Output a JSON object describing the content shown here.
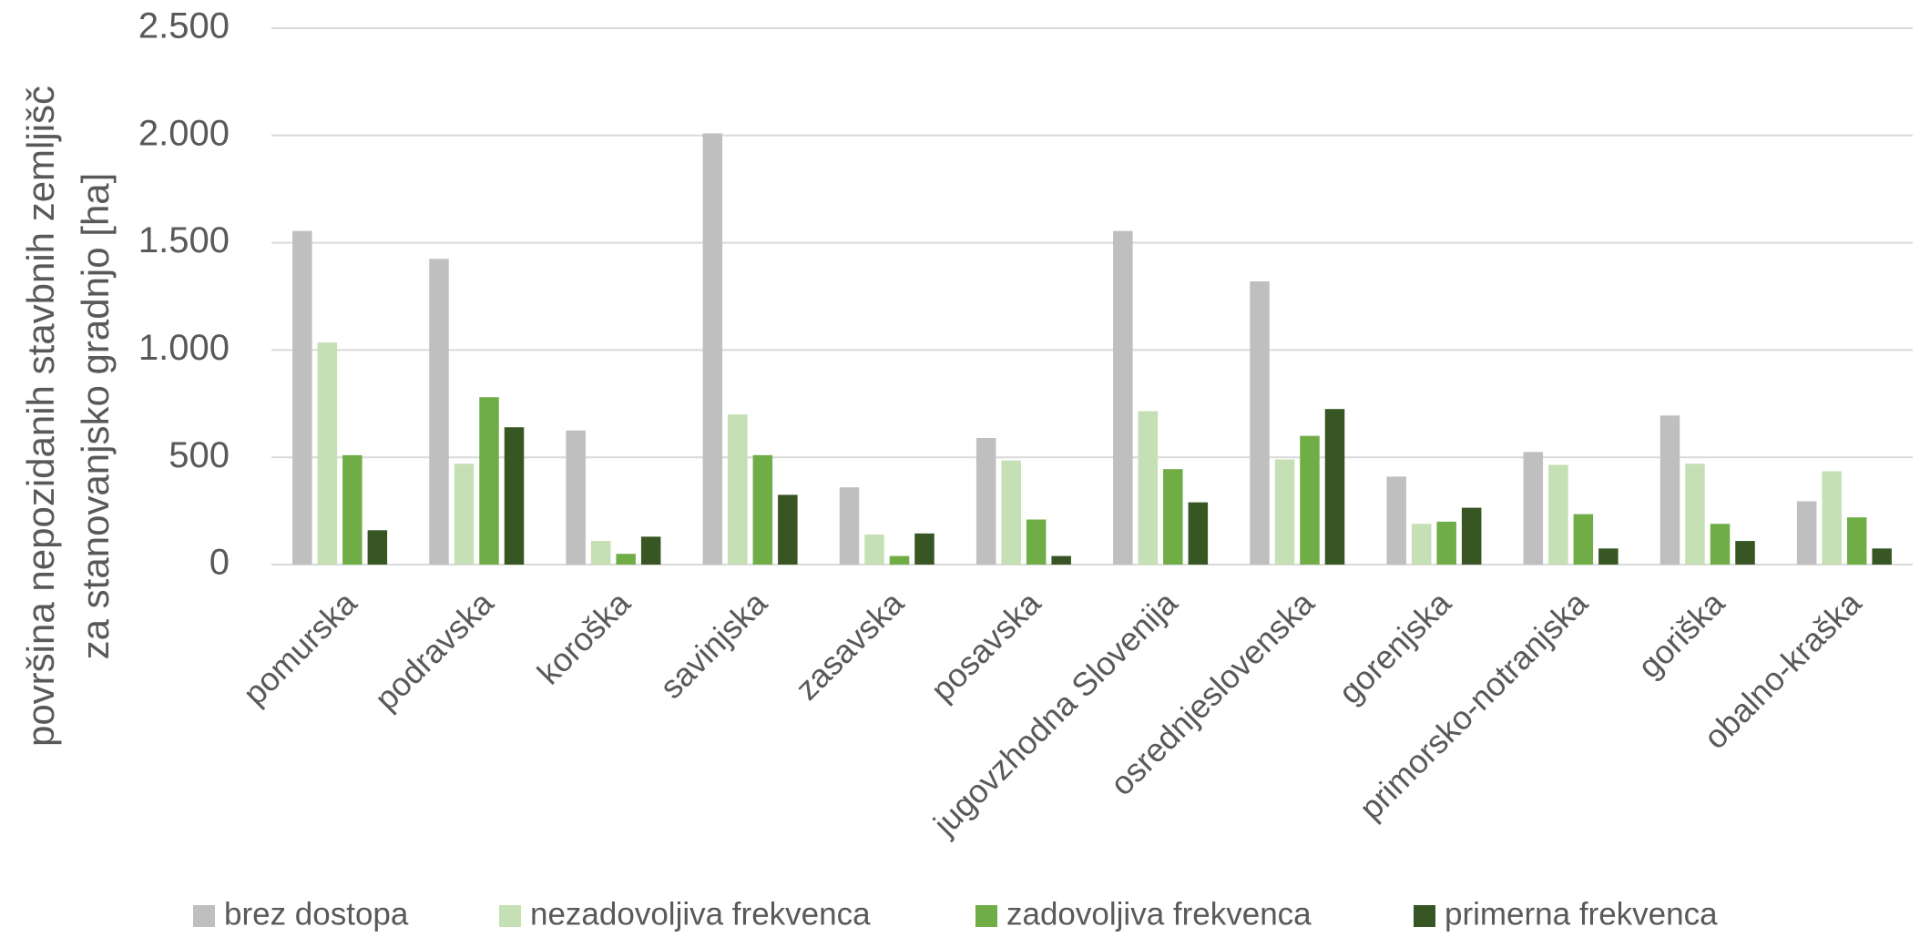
{
  "chart_data": {
    "type": "bar",
    "y_label": [
      "površina nepozidanih stavbnih zemljišč",
      "za stanovanjsko gradnjo [ha]"
    ],
    "categories": [
      "pomurska",
      "podravska",
      "koroška",
      "savinjska",
      "zasavska",
      "posavska",
      "jugovzhodna Slovenija",
      "osrednjeslovenska",
      "gorenjska",
      "primorsko-notranjska",
      "goriška",
      "obalno-kraška"
    ],
    "series": [
      {
        "name": "brez dostopa",
        "color": "#bfbfbf",
        "values": [
          1555,
          1425,
          625,
          2010,
          360,
          590,
          1555,
          1320,
          410,
          525,
          695,
          295
        ]
      },
      {
        "name": "nezadovoljiva frekvenca",
        "color": "#c5e0b4",
        "values": [
          1035,
          470,
          110,
          700,
          140,
          485,
          715,
          490,
          190,
          465,
          470,
          435
        ]
      },
      {
        "name": "zadovoljiva frekvenca",
        "color": "#70ad47",
        "values": [
          510,
          780,
          50,
          510,
          40,
          210,
          445,
          600,
          200,
          235,
          190,
          220
        ]
      },
      {
        "name": "primerna frekvenca",
        "color": "#375623",
        "values": [
          160,
          640,
          130,
          325,
          145,
          40,
          290,
          725,
          265,
          75,
          110,
          75
        ]
      }
    ],
    "ylim": [
      0,
      2500
    ],
    "yticks": [
      0,
      500,
      {
        "value": 1000,
        "label": "1.000"
      },
      {
        "value": 1500,
        "label": "1.500"
      },
      {
        "value": 2000,
        "label": "2.000"
      },
      {
        "value": 2500,
        "label": "2.500"
      }
    ],
    "grid": true,
    "legend": "bottom"
  }
}
